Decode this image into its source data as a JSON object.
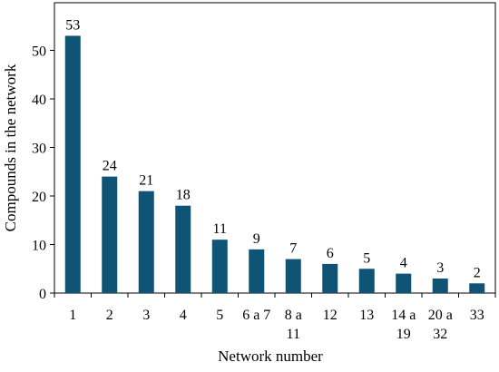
{
  "chart_data": {
    "type": "bar",
    "categories": [
      [
        "1"
      ],
      [
        "2"
      ],
      [
        "3"
      ],
      [
        "4"
      ],
      [
        "5"
      ],
      [
        "6 a 7"
      ],
      [
        "8 a",
        "11"
      ],
      [
        "12"
      ],
      [
        "13"
      ],
      [
        "14 a",
        "19"
      ],
      [
        "20 a",
        "32"
      ],
      [
        "33"
      ]
    ],
    "values": [
      53,
      24,
      21,
      18,
      11,
      9,
      7,
      6,
      5,
      4,
      3,
      2
    ],
    "data_labels": [
      "53",
      "24",
      "21",
      "18",
      "11",
      "9",
      "7",
      "6",
      "5",
      "4",
      "3",
      "2"
    ],
    "xlabel": "Network number",
    "ylabel": "Compounds in the network",
    "ylim": [
      0,
      55
    ],
    "yticks": [
      0,
      10,
      20,
      30,
      40,
      50
    ],
    "grid": false,
    "bar_color": "#0f5474"
  }
}
